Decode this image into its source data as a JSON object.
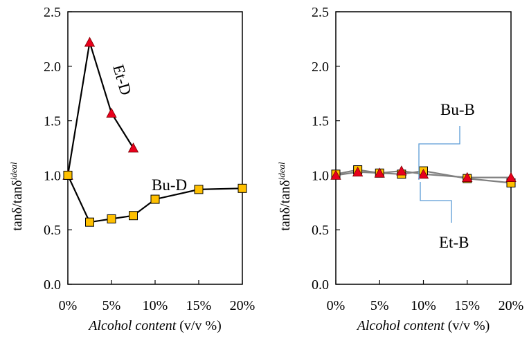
{
  "chart_data": [
    {
      "type": "line",
      "ylabel": {
        "base": "tanδ/tanδ",
        "sup": "ideal"
      },
      "xlabel": {
        "italic": "Alcohol content",
        "plain": " (v/v %)"
      },
      "xlim": [
        0,
        0.2
      ],
      "ylim": [
        0,
        2.5
      ],
      "x_ticks": [
        "0%",
        "5%",
        "10%",
        "15%",
        "20%"
      ],
      "y_ticks": [
        "0.0",
        "0.5",
        "1.0",
        "1.5",
        "2.0",
        "2.5"
      ],
      "grid": false,
      "series": [
        {
          "name": "Et-D",
          "marker": "triangle",
          "color": "#e8001c",
          "line_color": "#000000",
          "x": [
            0,
            0.025,
            0.05,
            0.075
          ],
          "y": [
            1.0,
            2.22,
            1.57,
            1.25
          ]
        },
        {
          "name": "Bu-D",
          "marker": "square",
          "color": "#ffc000",
          "line_color": "#000000",
          "x": [
            0,
            0.025,
            0.05,
            0.075,
            0.1,
            0.15,
            0.2
          ],
          "y": [
            1.0,
            0.57,
            0.6,
            0.63,
            0.78,
            0.87,
            0.88
          ]
        }
      ]
    },
    {
      "type": "line",
      "ylabel": {
        "base": "tanδ/tanδ",
        "sup": "ideal"
      },
      "xlabel": {
        "italic": "Alcohol content",
        "plain": " (v/v %)"
      },
      "xlim": [
        0,
        0.2
      ],
      "ylim": [
        0,
        2.5
      ],
      "x_ticks": [
        "0%",
        "5%",
        "10%",
        "15%",
        "20%"
      ],
      "y_ticks": [
        "0.0",
        "0.5",
        "1.0",
        "1.5",
        "2.0",
        "2.5"
      ],
      "grid": false,
      "series": [
        {
          "name": "Bu-B",
          "marker": "square",
          "color": "#ffc000",
          "line_color": "#808080",
          "x": [
            0,
            0.025,
            0.05,
            0.075,
            0.1,
            0.15,
            0.2
          ],
          "y": [
            1.01,
            1.05,
            1.02,
            1.01,
            1.04,
            0.97,
            0.93
          ]
        },
        {
          "name": "Et-B",
          "marker": "triangle",
          "color": "#e8001c",
          "line_color": "#808080",
          "x": [
            0,
            0.025,
            0.05,
            0.075,
            0.1,
            0.15,
            0.2
          ],
          "y": [
            1.0,
            1.03,
            1.02,
            1.04,
            1.01,
            0.98,
            0.98
          ]
        }
      ]
    }
  ]
}
